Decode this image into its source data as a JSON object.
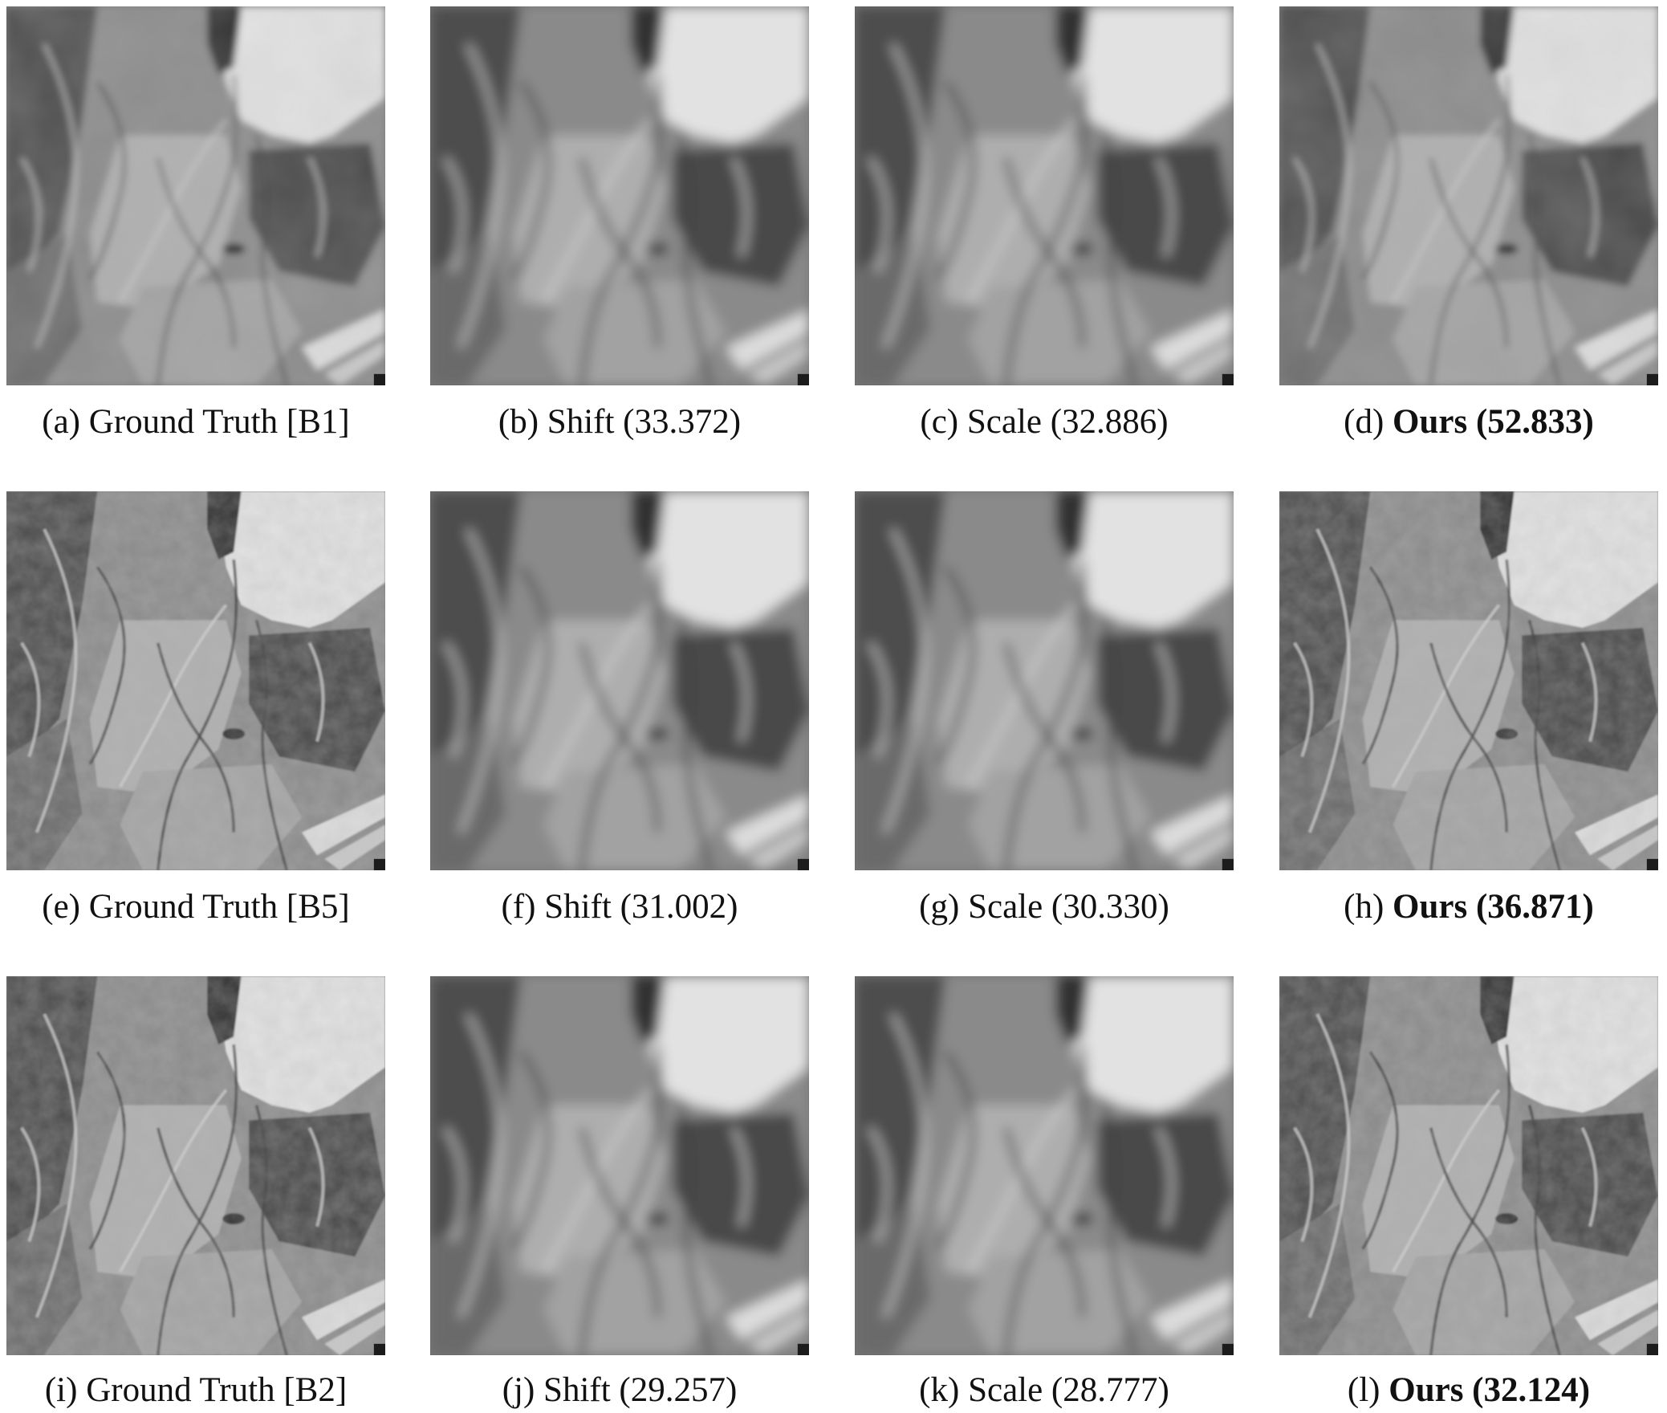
{
  "figure": {
    "rows": [
      {
        "panels": [
          {
            "tag": "(a)",
            "label": "Ground Truth [B1]",
            "bold_label": "",
            "style": "blocky"
          },
          {
            "tag": "(b)",
            "label": "Shift (33.372)",
            "bold_label": "",
            "style": "blur"
          },
          {
            "tag": "(c)",
            "label": "Scale (32.886)",
            "bold_label": "",
            "style": "blur"
          },
          {
            "tag": "(d)",
            "label": "",
            "bold_label": "Ours (52.833)",
            "style": "blocky"
          }
        ]
      },
      {
        "panels": [
          {
            "tag": "(e)",
            "label": "Ground Truth [B5]",
            "bold_label": "",
            "style": "sharp"
          },
          {
            "tag": "(f)",
            "label": "Shift (31.002)",
            "bold_label": "",
            "style": "blur"
          },
          {
            "tag": "(g)",
            "label": "Scale (30.330)",
            "bold_label": "",
            "style": "blur"
          },
          {
            "tag": "(h)",
            "label": "",
            "bold_label": "Ours (36.871)",
            "style": "sharp"
          }
        ]
      },
      {
        "panels": [
          {
            "tag": "(i)",
            "label": "Ground Truth [B2]",
            "bold_label": "",
            "style": "sharp"
          },
          {
            "tag": "(j)",
            "label": "Shift (29.257)",
            "bold_label": "",
            "style": "blur"
          },
          {
            "tag": "(k)",
            "label": "Scale (28.777)",
            "bold_label": "",
            "style": "blur"
          },
          {
            "tag": "(l)",
            "label": "",
            "bold_label": "Ours (32.124)",
            "style": "sharp"
          }
        ]
      }
    ]
  }
}
